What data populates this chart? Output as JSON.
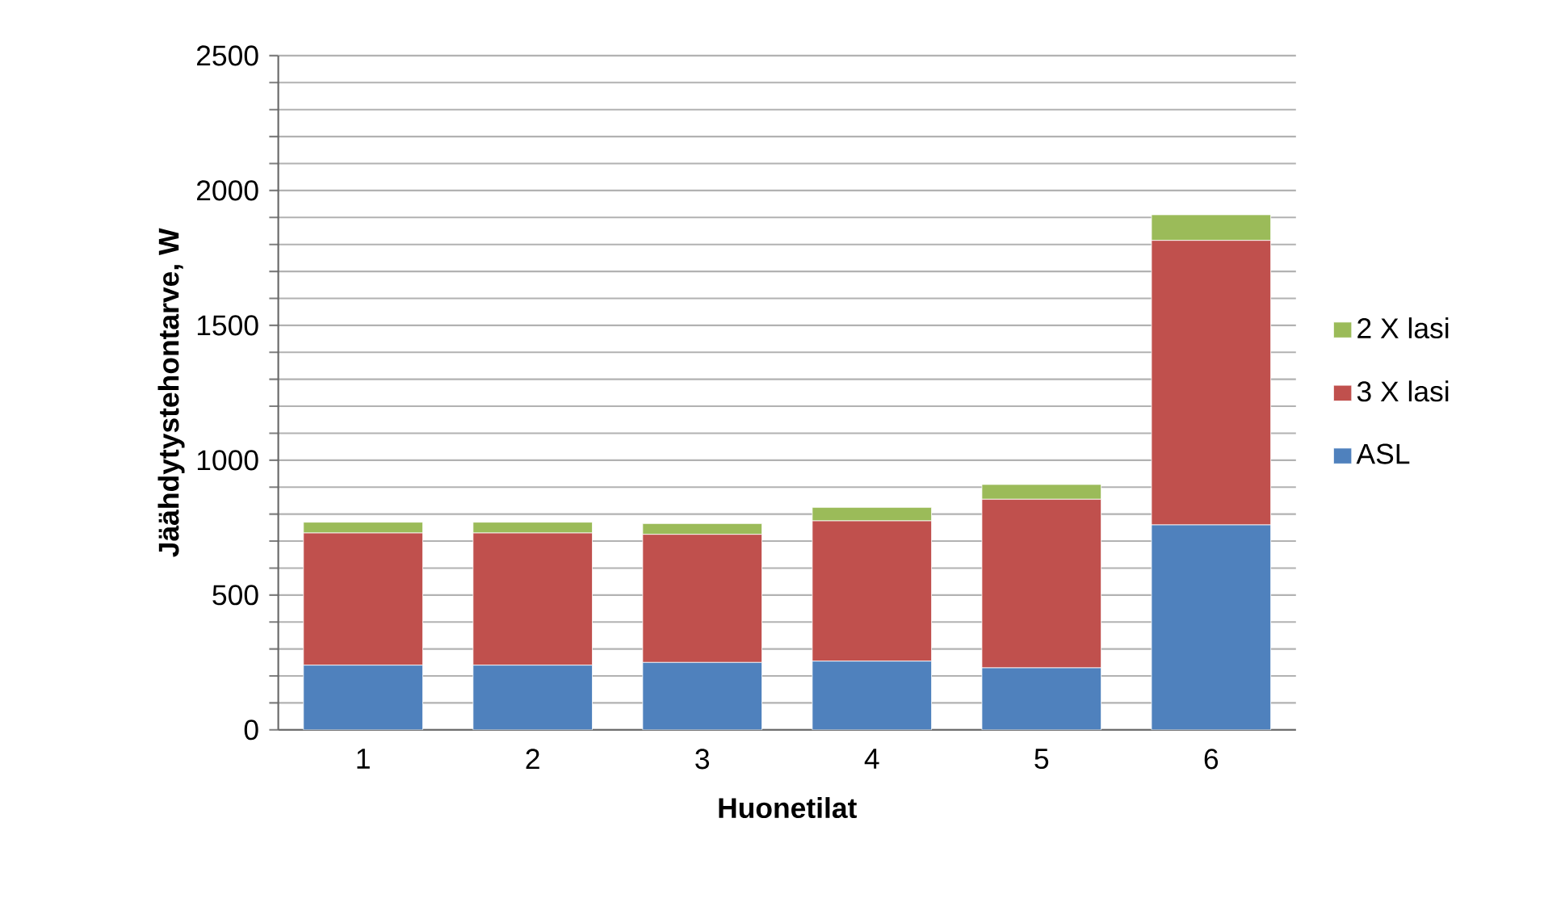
{
  "chart_data": {
    "type": "bar",
    "stacked": true,
    "xlabel": "Huonetilat",
    "ylabel": "Jäähdytystehontarve, W",
    "categories": [
      "1",
      "2",
      "3",
      "4",
      "5",
      "6"
    ],
    "series": [
      {
        "name": "ASL",
        "color": "#4f81bd",
        "values": [
          240,
          240,
          250,
          255,
          230,
          760
        ]
      },
      {
        "name": "3 X lasi",
        "color": "#c0504d",
        "values": [
          490,
          490,
          475,
          520,
          625,
          1055
        ]
      },
      {
        "name": "2 X lasi",
        "color": "#9bbb59",
        "values": [
          40,
          40,
          40,
          50,
          55,
          95
        ]
      }
    ],
    "ylim": [
      0,
      2500
    ],
    "yticks": [
      0,
      {
        "value": 100,
        "label": null
      },
      {
        "value": 200,
        "label": null
      },
      {
        "value": 300,
        "label": null
      },
      {
        "value": 400,
        "label": null
      },
      500,
      {
        "value": 600,
        "label": null
      },
      {
        "value": 700,
        "label": null
      },
      {
        "value": 800,
        "label": null
      },
      {
        "value": 900,
        "label": null
      },
      1000,
      {
        "value": 1100,
        "label": null
      },
      {
        "value": 1200,
        "label": null
      },
      {
        "value": 1300,
        "label": null
      },
      {
        "value": 1400,
        "label": null
      },
      1500,
      {
        "value": 1600,
        "label": null
      },
      {
        "value": 1700,
        "label": null
      },
      {
        "value": 1800,
        "label": null
      },
      {
        "value": 1900,
        "label": null
      },
      2000,
      {
        "value": 2100,
        "label": null
      },
      {
        "value": 2200,
        "label": null
      },
      {
        "value": 2300,
        "label": null
      },
      {
        "value": 2400,
        "label": null
      },
      2500
    ],
    "grid": "y",
    "legend": "right"
  }
}
